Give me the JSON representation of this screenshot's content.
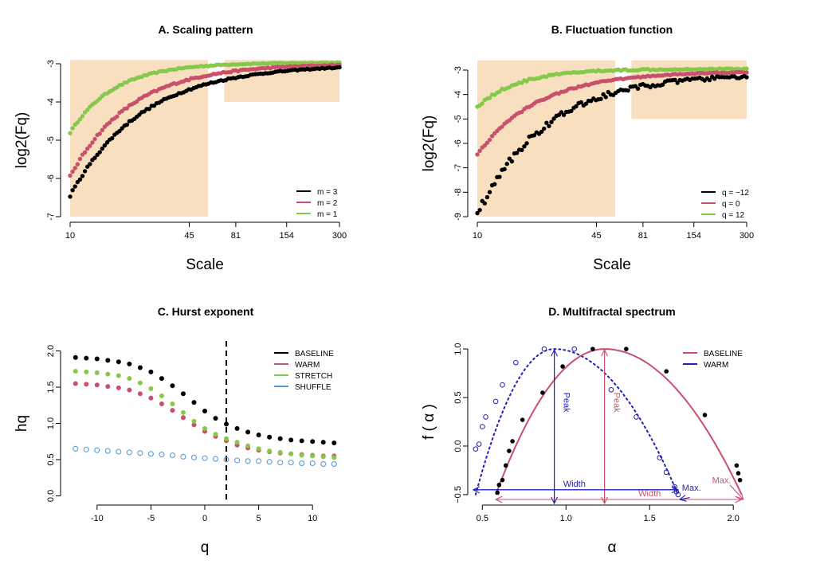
{
  "colors": {
    "black": "#000000",
    "red": "#c9506a",
    "green": "#85c94a",
    "blue": "#5b9bd5",
    "navy": "#1f1fb4",
    "shade": "#f7dfbf"
  },
  "chart_data": [
    {
      "id": "A",
      "type": "scatter",
      "title": "A. Scaling pattern",
      "xlabel": "Scale",
      "ylabel": "log2(Fq)",
      "xscale": "log",
      "xlim": [
        10,
        300
      ],
      "ylim": [
        -7,
        -3
      ],
      "xticks": [
        10,
        45,
        81,
        154,
        300
      ],
      "yticks": [
        -7,
        -6,
        -5,
        -4,
        -3
      ],
      "shaded_regions": [
        {
          "x": [
            10,
            57
          ],
          "y": [
            -7,
            -2.9
          ]
        },
        {
          "x": [
            70,
            300
          ],
          "y": [
            -4,
            -2.9
          ]
        }
      ],
      "legend_position": "bottom-right",
      "series": [
        {
          "name": "m = 3",
          "color": "#000000",
          "start": -6.45,
          "end": -3.02,
          "k": 1.05,
          "jitter": 0.06
        },
        {
          "name": "m = 2",
          "color": "#c9506a",
          "start": -5.95,
          "end": -3.0,
          "k": 1.25,
          "jitter": 0.06
        },
        {
          "name": "m = 1",
          "color": "#85c94a",
          "start": -4.8,
          "end": -2.97,
          "k": 1.7,
          "jitter": 0.04
        }
      ]
    },
    {
      "id": "B",
      "type": "scatter",
      "title": "B. Fluctuation function",
      "xlabel": "Scale",
      "ylabel": "log2(Fq)",
      "xscale": "log",
      "xlim": [
        10,
        300
      ],
      "ylim": [
        -9,
        -3
      ],
      "xticks": [
        10,
        45,
        81,
        154,
        300
      ],
      "yticks": [
        -9,
        -8,
        -7,
        -6,
        -5,
        -4,
        -3
      ],
      "shaded_regions": [
        {
          "x": [
            10,
            57
          ],
          "y": [
            -9,
            -2.6
          ]
        },
        {
          "x": [
            70,
            300
          ],
          "y": [
            -5,
            -2.6
          ]
        }
      ],
      "legend_position": "bottom-right",
      "series": [
        {
          "name": "q = −12",
          "color": "#000000",
          "start": -8.9,
          "end": -3.15,
          "k": 1.1,
          "jitter": 0.3
        },
        {
          "name": "q = 0",
          "color": "#c9506a",
          "start": -6.45,
          "end": -3.05,
          "k": 1.25,
          "jitter": 0.08
        },
        {
          "name": "q = 12",
          "color": "#85c94a",
          "start": -4.5,
          "end": -2.95,
          "k": 1.8,
          "jitter": 0.1
        }
      ]
    },
    {
      "id": "C",
      "type": "scatter",
      "title": "C. Hurst exponent",
      "xlabel": "q",
      "ylabel": "hq",
      "xlim": [
        -12.5,
        12.5
      ],
      "ylim": [
        -0.05,
        2.05
      ],
      "xticks": [
        -10,
        -5,
        0,
        5,
        10
      ],
      "yticks": [
        0.0,
        0.5,
        1.0,
        1.5,
        2.0
      ],
      "ytick_labels": [
        "0.0",
        "0.5",
        "1.0",
        "1.5",
        "2.0"
      ],
      "vline": 2,
      "x": [
        -12,
        -11,
        -10,
        -9,
        -8,
        -7,
        -6,
        -5,
        -4,
        -3,
        -2,
        -1,
        0,
        1,
        2,
        3,
        4,
        5,
        6,
        7,
        8,
        9,
        10,
        11,
        12
      ],
      "legend_position": "top-right",
      "series": [
        {
          "name": "BASELINE",
          "color": "#000000",
          "marker": "filled",
          "values": [
            1.91,
            1.9,
            1.89,
            1.87,
            1.85,
            1.82,
            1.77,
            1.71,
            1.62,
            1.52,
            1.41,
            1.29,
            1.17,
            1.07,
            0.99,
            0.93,
            0.88,
            0.84,
            0.81,
            0.79,
            0.77,
            0.76,
            0.75,
            0.74,
            0.73
          ]
        },
        {
          "name": "WARM",
          "color": "#c9506a",
          "marker": "filled",
          "values": [
            1.55,
            1.54,
            1.53,
            1.51,
            1.49,
            1.46,
            1.41,
            1.35,
            1.27,
            1.18,
            1.08,
            0.98,
            0.89,
            0.82,
            0.76,
            0.7,
            0.66,
            0.63,
            0.61,
            0.59,
            0.58,
            0.57,
            0.56,
            0.55,
            0.55
          ]
        },
        {
          "name": "STRETCH",
          "color": "#85c94a",
          "marker": "filled",
          "values": [
            1.72,
            1.71,
            1.7,
            1.68,
            1.66,
            1.62,
            1.56,
            1.48,
            1.38,
            1.27,
            1.15,
            1.03,
            0.93,
            0.85,
            0.79,
            0.74,
            0.69,
            0.65,
            0.62,
            0.6,
            0.58,
            0.56,
            0.55,
            0.54,
            0.53
          ]
        },
        {
          "name": "SHUFFLE",
          "color": "#5b9bd5",
          "marker": "open",
          "values": [
            0.65,
            0.64,
            0.63,
            0.62,
            0.61,
            0.6,
            0.59,
            0.58,
            0.57,
            0.56,
            0.54,
            0.53,
            0.52,
            0.51,
            0.5,
            0.49,
            0.48,
            0.48,
            0.47,
            0.46,
            0.46,
            0.45,
            0.45,
            0.44,
            0.44
          ]
        }
      ]
    },
    {
      "id": "D",
      "type": "line",
      "title": "D. Multifractal spectrum",
      "xlabel": "α",
      "ylabel": "f ( α )",
      "xlim": [
        0.47,
        2.08
      ],
      "ylim": [
        -0.55,
        1.05
      ],
      "xticks": [
        0.5,
        1.0,
        1.5,
        2.0
      ],
      "xtick_labels": [
        "0.5",
        "1.0",
        "1.5",
        "2.0"
      ],
      "yticks": [
        -0.5,
        0.0,
        0.5,
        1.0
      ],
      "ytick_labels": [
        "−0.5",
        "0.0",
        "0.5",
        "1.0"
      ],
      "legend_position": "top-right",
      "series": [
        {
          "name": "BASELINE",
          "color": "#c9506a",
          "curve": {
            "x0": 0.58,
            "x1": 2.05,
            "peak": 1.23,
            "ymin": -0.5
          },
          "points_color": "#000000",
          "point_style": "filled",
          "line_style": "solid"
        },
        {
          "name": "WARM",
          "color": "#1f1fb4",
          "curve": {
            "x0": 0.46,
            "x1": 1.67,
            "peak": 0.93,
            "ymin": -0.5
          },
          "points_color": "#1f1fb4",
          "point_style": "open",
          "line_style": "dotted"
        }
      ],
      "baseline_points": [
        [
          0.59,
          -0.48
        ],
        [
          0.6,
          -0.4
        ],
        [
          0.62,
          -0.35
        ],
        [
          0.64,
          -0.2
        ],
        [
          0.66,
          -0.05
        ],
        [
          0.68,
          0.05
        ],
        [
          0.74,
          0.27
        ],
        [
          0.86,
          0.55
        ],
        [
          0.98,
          0.82
        ],
        [
          1.16,
          1.0
        ],
        [
          1.36,
          1.0
        ],
        [
          1.6,
          0.77
        ],
        [
          1.83,
          0.32
        ],
        [
          2.02,
          -0.2
        ],
        [
          2.03,
          -0.28
        ],
        [
          2.04,
          -0.35
        ]
      ],
      "warm_points": [
        [
          0.46,
          -0.03
        ],
        [
          0.48,
          0.02
        ],
        [
          0.5,
          0.2
        ],
        [
          0.52,
          0.3
        ],
        [
          0.58,
          0.46
        ],
        [
          0.62,
          0.63
        ],
        [
          0.7,
          0.86
        ],
        [
          0.87,
          1.0
        ],
        [
          1.05,
          1.0
        ],
        [
          1.27,
          0.58
        ],
        [
          1.42,
          0.3
        ],
        [
          1.56,
          -0.12
        ],
        [
          1.6,
          -0.27
        ],
        [
          1.65,
          -0.42
        ],
        [
          1.66,
          -0.47
        ],
        [
          1.67,
          -0.5
        ]
      ],
      "annotations": {
        "warm_peak": "Peak",
        "baseline_peak": "Peak",
        "warm_width": "Width",
        "baseline_width": "Width",
        "warm_max": "Max.",
        "baseline_max": "Max."
      }
    }
  ]
}
